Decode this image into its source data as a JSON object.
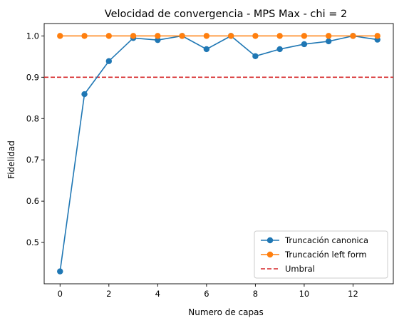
{
  "chart_data": {
    "type": "line",
    "title": "Velocidad de convergencia - MPS Max - chi = 2",
    "xlabel": "Numero de capas",
    "ylabel": "Fidelidad",
    "x": [
      0,
      1,
      2,
      3,
      4,
      5,
      6,
      7,
      8,
      9,
      10,
      11,
      12,
      13
    ],
    "xlim": [
      -0.65,
      13.65
    ],
    "ylim": [
      0.4,
      1.03
    ],
    "xticks": [
      0,
      2,
      4,
      6,
      8,
      10,
      12
    ],
    "yticks": [
      0.5,
      0.6,
      0.7,
      0.8,
      0.9,
      1.0
    ],
    "ytick_labels": [
      "0.5",
      "0.6",
      "0.7",
      "0.8",
      "0.9",
      "1.0"
    ],
    "grid": false,
    "legend_position": "lower-right",
    "series": [
      {
        "name": "Truncación canonica",
        "color": "#1f77b4",
        "marker": "circle",
        "values": [
          0.43,
          0.859,
          0.939,
          0.995,
          0.99,
          1.0,
          0.968,
          1.0,
          0.951,
          0.968,
          0.98,
          0.987,
          1.0,
          0.991
        ]
      },
      {
        "name": "Truncación left form",
        "color": "#ff7f0e",
        "marker": "circle",
        "values": [
          1.0,
          1.0,
          1.0,
          1.0,
          1.0,
          1.0,
          1.0,
          1.0,
          1.0,
          1.0,
          1.0,
          1.0,
          1.0,
          1.0
        ]
      }
    ],
    "reference_lines": [
      {
        "name": "Umbral",
        "y": 0.9,
        "color": "#d62728",
        "style": "dashed"
      }
    ]
  }
}
